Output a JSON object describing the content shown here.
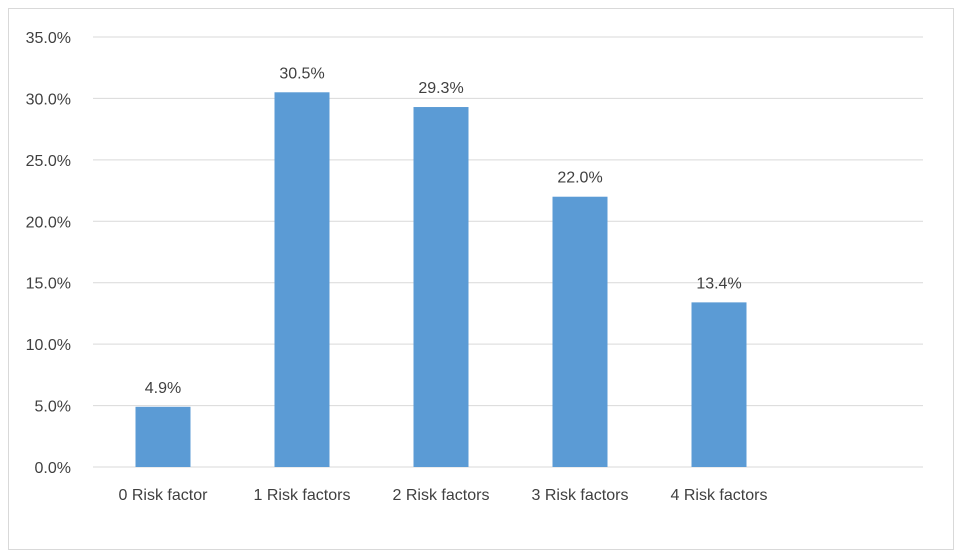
{
  "chart_data": {
    "type": "bar",
    "categories": [
      "0 Risk factor",
      "1 Risk factors",
      "2 Risk factors",
      "3 Risk factors",
      "4 Risk factors"
    ],
    "values": [
      4.9,
      30.5,
      29.3,
      22.0,
      13.4
    ],
    "data_labels": [
      "4.9%",
      "30.5%",
      "29.3%",
      "22.0%",
      "13.4%"
    ],
    "y_ticks": [
      0,
      5,
      10,
      15,
      20,
      25,
      30,
      35
    ],
    "y_tick_labels": [
      "0.0%",
      "5.0%",
      "10.0%",
      "15.0%",
      "20.0%",
      "25.0%",
      "30.0%",
      "35.0%"
    ],
    "ylim": [
      0,
      35
    ],
    "grid": true,
    "legend": "none",
    "bar_color": "#5b9bd5",
    "grid_color": "#d9d9d9"
  }
}
